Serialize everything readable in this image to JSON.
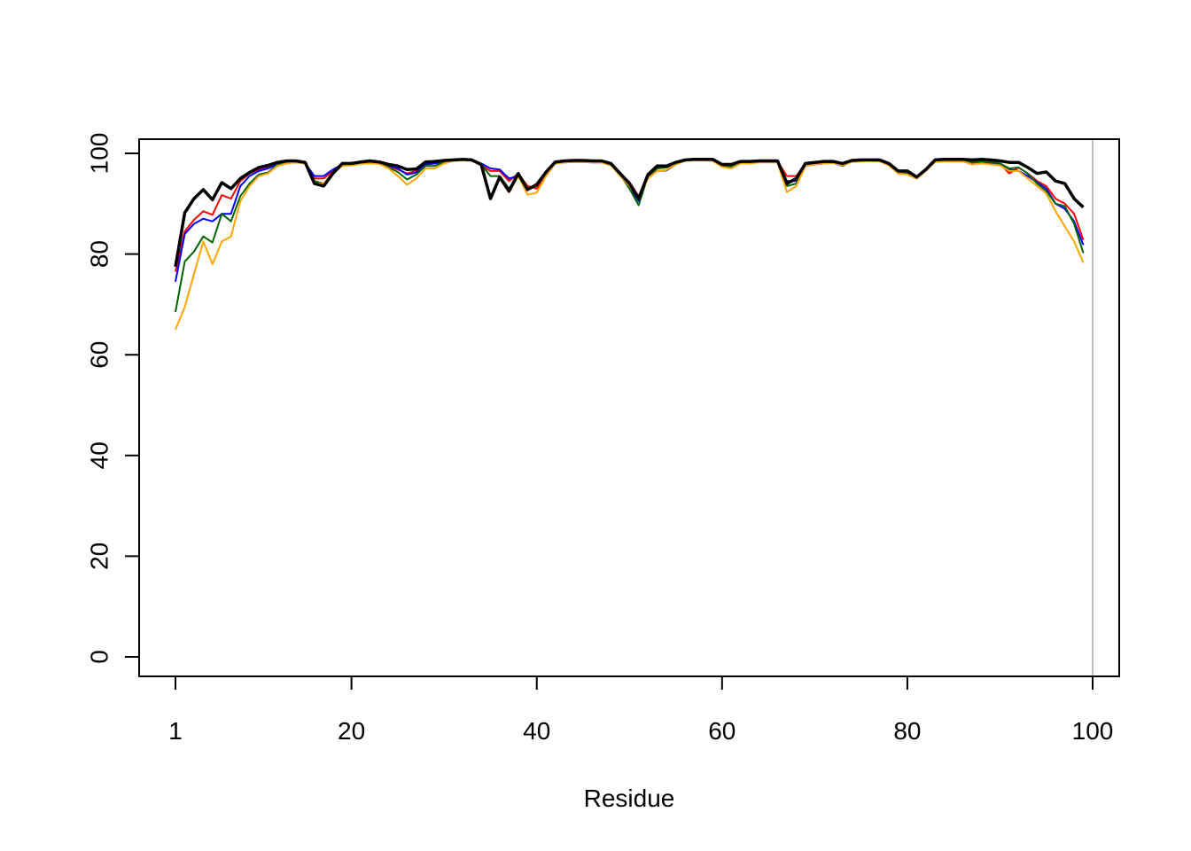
{
  "chart_data": {
    "type": "line",
    "title": "",
    "xlabel": "Residue",
    "ylabel": "",
    "xlim": [
      1,
      100
    ],
    "ylim": [
      0,
      100
    ],
    "x_ticks": [
      1,
      20,
      40,
      60,
      80,
      100
    ],
    "y_ticks": [
      0,
      20,
      40,
      60,
      80,
      100
    ],
    "reference_line_x": 100,
    "reference_line_color": "#BEBEBE",
    "x": [
      1,
      2,
      3,
      4,
      5,
      6,
      7,
      8,
      9,
      10,
      11,
      12,
      13,
      14,
      15,
      16,
      17,
      18,
      19,
      20,
      21,
      22,
      23,
      24,
      25,
      26,
      27,
      28,
      29,
      30,
      31,
      32,
      33,
      34,
      35,
      36,
      37,
      38,
      39,
      40,
      41,
      42,
      43,
      44,
      45,
      46,
      47,
      48,
      49,
      50,
      51,
      52,
      53,
      54,
      55,
      56,
      57,
      58,
      59,
      60,
      61,
      62,
      63,
      64,
      65,
      66,
      67,
      68,
      69,
      70,
      71,
      72,
      73,
      74,
      75,
      76,
      77,
      78,
      79,
      80,
      81,
      82,
      83,
      84,
      85,
      86,
      87,
      88,
      89,
      90,
      91,
      92,
      93,
      94,
      95,
      96,
      97,
      98,
      99
    ],
    "series": [
      {
        "color": "#000000",
        "stroke_width": 3.5,
        "values": [
          77.5,
          88.2,
          91.0,
          92.8,
          90.8,
          94.2,
          93.0,
          95.0,
          96.2,
          97.2,
          97.6,
          98.2,
          98.5,
          98.5,
          98.2,
          94.0,
          93.5,
          96.0,
          98.0,
          98.0,
          98.3,
          98.5,
          98.3,
          97.8,
          97.5,
          96.8,
          96.9,
          98.3,
          98.4,
          98.6,
          98.7,
          98.8,
          98.7,
          97.8,
          91.0,
          95.3,
          92.5,
          96.0,
          92.8,
          93.8,
          96.3,
          98.3,
          98.5,
          98.6,
          98.6,
          98.5,
          98.5,
          98.0,
          96.0,
          94.0,
          91.0,
          95.8,
          97.5,
          97.5,
          98.2,
          98.7,
          98.8,
          98.8,
          98.8,
          97.8,
          97.8,
          98.4,
          98.4,
          98.5,
          98.5,
          98.5,
          94.0,
          95.0,
          98.0,
          98.2,
          98.4,
          98.4,
          98.0,
          98.6,
          98.7,
          98.7,
          98.7,
          98.0,
          96.5,
          96.5,
          95.3,
          96.8,
          98.7,
          98.8,
          98.8,
          98.8,
          98.7,
          98.8,
          98.7,
          98.5,
          98.2,
          98.2,
          97.2,
          96.0,
          96.3,
          94.5,
          94.0,
          91.0,
          89.3
        ]
      },
      {
        "color": "#FF0000",
        "stroke_width": 2,
        "values": [
          76.5,
          84.5,
          86.8,
          88.5,
          87.8,
          91.7,
          91.0,
          94.5,
          96.0,
          96.8,
          97.2,
          98.0,
          98.2,
          98.3,
          98.0,
          95.0,
          95.0,
          96.5,
          97.8,
          98.0,
          98.2,
          98.3,
          98.2,
          97.5,
          96.8,
          96.0,
          96.5,
          97.8,
          98.0,
          98.4,
          98.6,
          98.7,
          98.6,
          97.6,
          96.5,
          96.5,
          94.5,
          96.0,
          93.5,
          93.0,
          96.0,
          98.0,
          98.3,
          98.4,
          98.4,
          98.3,
          98.3,
          97.8,
          96.0,
          94.3,
          91.5,
          95.5,
          97.0,
          97.2,
          98.0,
          98.6,
          98.7,
          98.7,
          98.6,
          97.5,
          97.3,
          98.2,
          98.2,
          98.4,
          98.4,
          98.4,
          95.5,
          95.5,
          97.8,
          98.0,
          98.2,
          98.2,
          97.8,
          98.5,
          98.5,
          98.6,
          98.5,
          97.8,
          96.5,
          96.3,
          95.2,
          96.8,
          98.5,
          98.6,
          98.6,
          98.6,
          98.3,
          98.4,
          98.3,
          98.0,
          96.0,
          97.2,
          96.0,
          94.5,
          93.5,
          91.0,
          90.0,
          88.0,
          82.8
        ]
      },
      {
        "color": "#0000FF",
        "stroke_width": 2,
        "values": [
          74.5,
          84.0,
          86.0,
          87.0,
          86.5,
          88.0,
          88.0,
          93.5,
          95.5,
          96.5,
          97.0,
          97.8,
          98.1,
          98.2,
          98.0,
          95.5,
          95.5,
          96.8,
          97.8,
          98.0,
          98.2,
          98.3,
          98.2,
          97.6,
          97.0,
          95.8,
          96.2,
          97.8,
          98.0,
          98.4,
          98.6,
          98.7,
          98.6,
          98.0,
          97.0,
          96.8,
          95.0,
          95.5,
          92.8,
          94.0,
          96.0,
          98.0,
          98.2,
          98.3,
          98.3,
          98.2,
          98.2,
          97.6,
          96.0,
          93.5,
          90.5,
          95.5,
          96.5,
          96.6,
          97.8,
          98.5,
          98.7,
          98.7,
          98.6,
          97.5,
          97.3,
          98.0,
          98.2,
          98.3,
          98.3,
          98.3,
          94.5,
          94.5,
          97.5,
          97.8,
          98.0,
          98.1,
          97.5,
          98.4,
          98.5,
          98.5,
          98.5,
          97.8,
          96.0,
          96.0,
          95.0,
          96.6,
          98.4,
          98.5,
          98.5,
          98.5,
          98.0,
          98.1,
          98.0,
          97.8,
          96.8,
          96.5,
          95.5,
          94.3,
          93.0,
          90.0,
          89.0,
          86.5,
          81.8
        ]
      },
      {
        "color": "#006400",
        "stroke_width": 2,
        "values": [
          68.5,
          78.5,
          80.5,
          83.5,
          82.3,
          88.0,
          86.5,
          91.5,
          94.0,
          95.8,
          96.2,
          97.8,
          98.3,
          98.4,
          98.2,
          94.5,
          94.0,
          96.2,
          97.8,
          97.9,
          98.2,
          98.4,
          98.2,
          97.2,
          96.3,
          94.8,
          95.8,
          97.5,
          97.5,
          98.3,
          98.7,
          98.8,
          98.7,
          97.8,
          95.5,
          95.5,
          93.0,
          95.8,
          93.0,
          93.5,
          96.0,
          98.0,
          98.3,
          98.4,
          98.4,
          98.3,
          98.3,
          97.8,
          95.8,
          93.0,
          89.7,
          95.5,
          97.0,
          97.2,
          98.0,
          98.6,
          98.8,
          98.8,
          98.7,
          97.5,
          97.3,
          98.2,
          98.2,
          98.4,
          98.4,
          98.4,
          93.5,
          94.0,
          97.8,
          98.0,
          98.2,
          98.2,
          97.8,
          98.6,
          98.7,
          98.7,
          98.6,
          97.8,
          96.0,
          96.0,
          95.0,
          96.6,
          98.6,
          98.7,
          98.7,
          98.7,
          98.2,
          98.3,
          98.2,
          98.0,
          97.0,
          97.2,
          96.0,
          94.0,
          92.5,
          90.0,
          89.5,
          86.0,
          80.2
        ]
      },
      {
        "color": "#FFA500",
        "stroke_width": 2,
        "values": [
          65.0,
          69.5,
          76.0,
          82.5,
          78.0,
          82.5,
          83.5,
          90.5,
          93.5,
          95.5,
          96.0,
          97.5,
          98.0,
          98.2,
          98.0,
          94.0,
          94.0,
          96.0,
          97.5,
          97.6,
          97.9,
          98.0,
          97.9,
          97.0,
          95.5,
          93.8,
          95.0,
          97.0,
          97.0,
          98.0,
          98.5,
          98.6,
          98.5,
          97.6,
          91.5,
          95.0,
          92.2,
          95.5,
          91.8,
          92.2,
          95.5,
          98.0,
          98.2,
          98.3,
          98.3,
          98.2,
          98.2,
          97.6,
          95.5,
          93.5,
          91.0,
          95.0,
          96.5,
          96.7,
          97.8,
          98.5,
          98.6,
          98.6,
          98.5,
          97.3,
          97.0,
          98.0,
          98.0,
          98.2,
          98.2,
          98.2,
          92.3,
          93.5,
          97.5,
          97.8,
          98.0,
          98.1,
          97.6,
          98.3,
          98.4,
          98.5,
          98.4,
          97.6,
          96.0,
          95.8,
          95.0,
          96.5,
          98.3,
          98.4,
          98.4,
          98.4,
          97.8,
          98.0,
          97.8,
          97.6,
          96.5,
          96.5,
          95.0,
          93.5,
          92.0,
          88.5,
          85.5,
          82.5,
          78.3
        ]
      }
    ]
  }
}
